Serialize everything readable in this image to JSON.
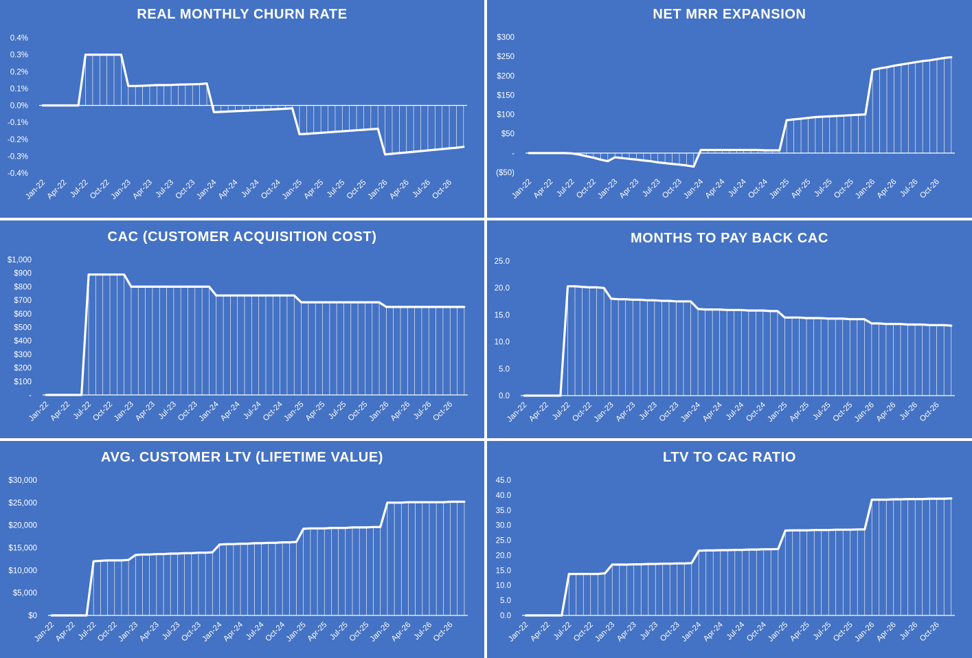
{
  "months": [
    "Jan-22",
    "Apr-22",
    "Jul-22",
    "Oct-22",
    "Jan-23",
    "Apr-23",
    "Jul-23",
    "Oct-23",
    "Jan-24",
    "Apr-24",
    "Jul-24",
    "Oct-24",
    "Jan-25",
    "Apr-25",
    "Jul-25",
    "Oct-25",
    "Jan-26",
    "Apr-26",
    "Jul-26",
    "Oct-26"
  ],
  "colors": {
    "panel_bg": "#4472c4",
    "line": "#ffffff",
    "axis": "#ffffff"
  },
  "chart_data": [
    {
      "id": "churn",
      "type": "line",
      "title": "REAL MONTHLY CHURN RATE",
      "x_tick_labels": [
        "Jan-22",
        "Apr-22",
        "Jul-22",
        "Oct-22",
        "Jan-23",
        "Apr-23",
        "Jul-23",
        "Oct-23",
        "Jan-24",
        "Apr-24",
        "Jul-24",
        "Oct-24",
        "Jan-25",
        "Apr-25",
        "Jul-25",
        "Oct-25",
        "Jan-26",
        "Apr-26",
        "Jul-26",
        "Oct-26"
      ],
      "y_ticks": [
        "0.4%",
        "0.3%",
        "0.2%",
        "0.1%",
        "0.0%",
        "-0.1%",
        "-0.2%",
        "-0.3%",
        "-0.4%"
      ],
      "ylim": [
        -0.4,
        0.4
      ],
      "unit": "%",
      "drop_lines": true,
      "series": [
        {
          "values": [
            0,
            0,
            0,
            0,
            0,
            0,
            0.3,
            0.3,
            0.3,
            0.3,
            0.3,
            0.3,
            0.115,
            0.115,
            0.116,
            0.118,
            0.12,
            0.12,
            0.121,
            0.123,
            0.124,
            0.125,
            0.126,
            0.13,
            -0.04,
            -0.038,
            -0.036,
            -0.034,
            -0.032,
            -0.03,
            -0.028,
            -0.026,
            -0.024,
            -0.022,
            -0.02,
            -0.017,
            -0.17,
            -0.168,
            -0.165,
            -0.162,
            -0.159,
            -0.156,
            -0.153,
            -0.15,
            -0.147,
            -0.144,
            -0.141,
            -0.138,
            -0.29,
            -0.286,
            -0.282,
            -0.278,
            -0.274,
            -0.27,
            -0.266,
            -0.262,
            -0.258,
            -0.254,
            -0.25,
            -0.245
          ]
        }
      ]
    },
    {
      "id": "mrr",
      "type": "line",
      "title": "NET MRR EXPANSION",
      "x_tick_labels": [
        "Jan-22",
        "Apr-22",
        "Jul-22",
        "Oct-22",
        "Jan-23",
        "Apr-23",
        "Jul-23",
        "Oct-23",
        "Jan-24",
        "Apr-24",
        "Jul-24",
        "Oct-24",
        "Jan-25",
        "Apr-25",
        "Jul-25",
        "Oct-25",
        "Jan-26",
        "Apr-26",
        "Jul-26",
        "Oct-26"
      ],
      "y_ticks": [
        "$300",
        "$250",
        "$200",
        "$150",
        "$100",
        "$50",
        "-",
        "($50)"
      ],
      "ylim": [
        -50,
        300
      ],
      "drop_lines": true,
      "series": [
        {
          "values": [
            0,
            0,
            0,
            0,
            0,
            0,
            -1,
            -4,
            -8,
            -12,
            -17,
            -21,
            -11,
            -13,
            -15,
            -17,
            -19,
            -21,
            -24,
            -26,
            -28,
            -30,
            -32,
            -35,
            8,
            8,
            8,
            8,
            8,
            8,
            8,
            8,
            8,
            7,
            7,
            7,
            85,
            87,
            89,
            91,
            93,
            94,
            95,
            96,
            97,
            98,
            99,
            100,
            215,
            219,
            222,
            226,
            229,
            232,
            235,
            238,
            240,
            243,
            246,
            248
          ]
        }
      ]
    },
    {
      "id": "cac",
      "type": "line",
      "title": "CAC (CUSTOMER ACQUISITION COST)",
      "x_tick_labels": [
        "Jan-22",
        "Apr-22",
        "Jul-22",
        "Oct-22",
        "Jan-23",
        "Apr-23",
        "Jul-23",
        "Oct-23",
        "Jan-24",
        "Apr-24",
        "Jul-24",
        "Oct-24",
        "Jan-25",
        "Apr-25",
        "Jul-25",
        "Oct-25",
        "Jan-26",
        "Apr-26",
        "Jul-26",
        "Oct-26"
      ],
      "y_ticks": [
        "$1,000",
        "$900",
        "$800",
        "$700",
        "$600",
        "$500",
        "$400",
        "$300",
        "$200",
        "$100",
        "-"
      ],
      "ylim": [
        0,
        1000
      ],
      "drop_lines": true,
      "series": [
        {
          "values": [
            0,
            0,
            0,
            0,
            0,
            0,
            890,
            890,
            890,
            890,
            890,
            890,
            800,
            800,
            800,
            800,
            800,
            800,
            800,
            800,
            800,
            800,
            800,
            800,
            735,
            735,
            735,
            735,
            735,
            735,
            735,
            735,
            735,
            735,
            735,
            735,
            685,
            685,
            685,
            685,
            685,
            685,
            685,
            685,
            685,
            685,
            685,
            685,
            650,
            650,
            650,
            650,
            650,
            650,
            650,
            650,
            650,
            650,
            650,
            650
          ]
        }
      ]
    },
    {
      "id": "payback",
      "type": "line",
      "title": "MONTHS TO PAY BACK CAC",
      "x_tick_labels": [
        "Jan-22",
        "Apr-22",
        "Jul-22",
        "Oct-22",
        "Jan-23",
        "Apr-23",
        "Jul-23",
        "Oct-23",
        "Jan-24",
        "Apr-24",
        "Jul-24",
        "Oct-24",
        "Jan-25",
        "Apr-25",
        "Jul-25",
        "Oct-25",
        "Jan-26",
        "Apr-26",
        "Jul-26",
        "Oct-26"
      ],
      "y_ticks": [
        "25.0",
        "20.0",
        "15.0",
        "10.0",
        "5.0",
        "0.0"
      ],
      "ylim": [
        0,
        25
      ],
      "drop_lines": true,
      "series": [
        {
          "values": [
            0,
            0,
            0,
            0,
            0,
            0,
            20.3,
            20.3,
            20.2,
            20.1,
            20.1,
            20.0,
            18.0,
            17.9,
            17.9,
            17.8,
            17.8,
            17.7,
            17.7,
            17.6,
            17.6,
            17.5,
            17.5,
            17.5,
            16.1,
            16.0,
            16.0,
            16.0,
            15.9,
            15.9,
            15.9,
            15.8,
            15.8,
            15.8,
            15.7,
            15.7,
            14.5,
            14.5,
            14.5,
            14.4,
            14.4,
            14.4,
            14.3,
            14.3,
            14.3,
            14.2,
            14.2,
            14.2,
            13.4,
            13.4,
            13.3,
            13.3,
            13.3,
            13.2,
            13.2,
            13.2,
            13.1,
            13.1,
            13.1,
            13.0
          ]
        }
      ]
    },
    {
      "id": "ltv",
      "type": "line",
      "title": "AVG. CUSTOMER LTV (LIFETIME VALUE)",
      "x_tick_labels": [
        "Jan-22",
        "Apr-22",
        "Jul-22",
        "Oct-22",
        "Jan-23",
        "Apr-23",
        "Jul-23",
        "Oct-23",
        "Jan-24",
        "Apr-24",
        "Jul-24",
        "Oct-24",
        "Jan-25",
        "Apr-25",
        "Jul-25",
        "Oct-25",
        "Jan-26",
        "Apr-26",
        "Jul-26",
        "Oct-26"
      ],
      "y_ticks": [
        "$30,000",
        "$25,000",
        "$20,000",
        "$15,000",
        "$10,000",
        "$5,000",
        "$0"
      ],
      "ylim": [
        0,
        30000
      ],
      "drop_lines": true,
      "series": [
        {
          "values": [
            0,
            0,
            0,
            0,
            0,
            0,
            12000,
            12100,
            12200,
            12200,
            12200,
            12300,
            13400,
            13500,
            13500,
            13600,
            13600,
            13700,
            13700,
            13800,
            13800,
            13900,
            13900,
            14000,
            15700,
            15800,
            15800,
            15900,
            15900,
            16000,
            16000,
            16100,
            16100,
            16200,
            16200,
            16300,
            19200,
            19300,
            19300,
            19300,
            19400,
            19400,
            19400,
            19500,
            19500,
            19500,
            19600,
            19600,
            25000,
            25000,
            25000,
            25100,
            25100,
            25100,
            25100,
            25100,
            25100,
            25200,
            25200,
            25200
          ]
        }
      ]
    },
    {
      "id": "ltv_cac",
      "type": "line",
      "title": "LTV TO CAC RATIO",
      "x_tick_labels": [
        "Jan-22",
        "Apr-22",
        "Jul-22",
        "Oct-22",
        "Jan-23",
        "Apr-23",
        "Jul-23",
        "Oct-23",
        "Jan-24",
        "Apr-24",
        "Jul-24",
        "Oct-24",
        "Jan-25",
        "Apr-25",
        "Jul-25",
        "Oct-25",
        "Jan-26",
        "Apr-26",
        "Jul-26",
        "Oct-26"
      ],
      "y_ticks": [
        "45.0",
        "40.0",
        "35.0",
        "30.0",
        "25.0",
        "20.0",
        "15.0",
        "10.0",
        "5.0",
        "0.0"
      ],
      "ylim": [
        0,
        45
      ],
      "drop_lines": true,
      "series": [
        {
          "values": [
            0,
            0,
            0,
            0,
            0,
            0,
            13.8,
            13.8,
            13.8,
            13.8,
            13.8,
            14.0,
            16.9,
            16.9,
            16.9,
            17.0,
            17.0,
            17.1,
            17.1,
            17.2,
            17.2,
            17.3,
            17.3,
            17.4,
            21.5,
            21.6,
            21.6,
            21.7,
            21.7,
            21.8,
            21.8,
            21.9,
            21.9,
            22.0,
            22.0,
            22.1,
            28.2,
            28.3,
            28.3,
            28.3,
            28.4,
            28.4,
            28.4,
            28.5,
            28.5,
            28.5,
            28.6,
            28.6,
            38.5,
            38.5,
            38.5,
            38.6,
            38.6,
            38.7,
            38.7,
            38.7,
            38.8,
            38.8,
            38.8,
            38.9
          ]
        }
      ]
    }
  ]
}
